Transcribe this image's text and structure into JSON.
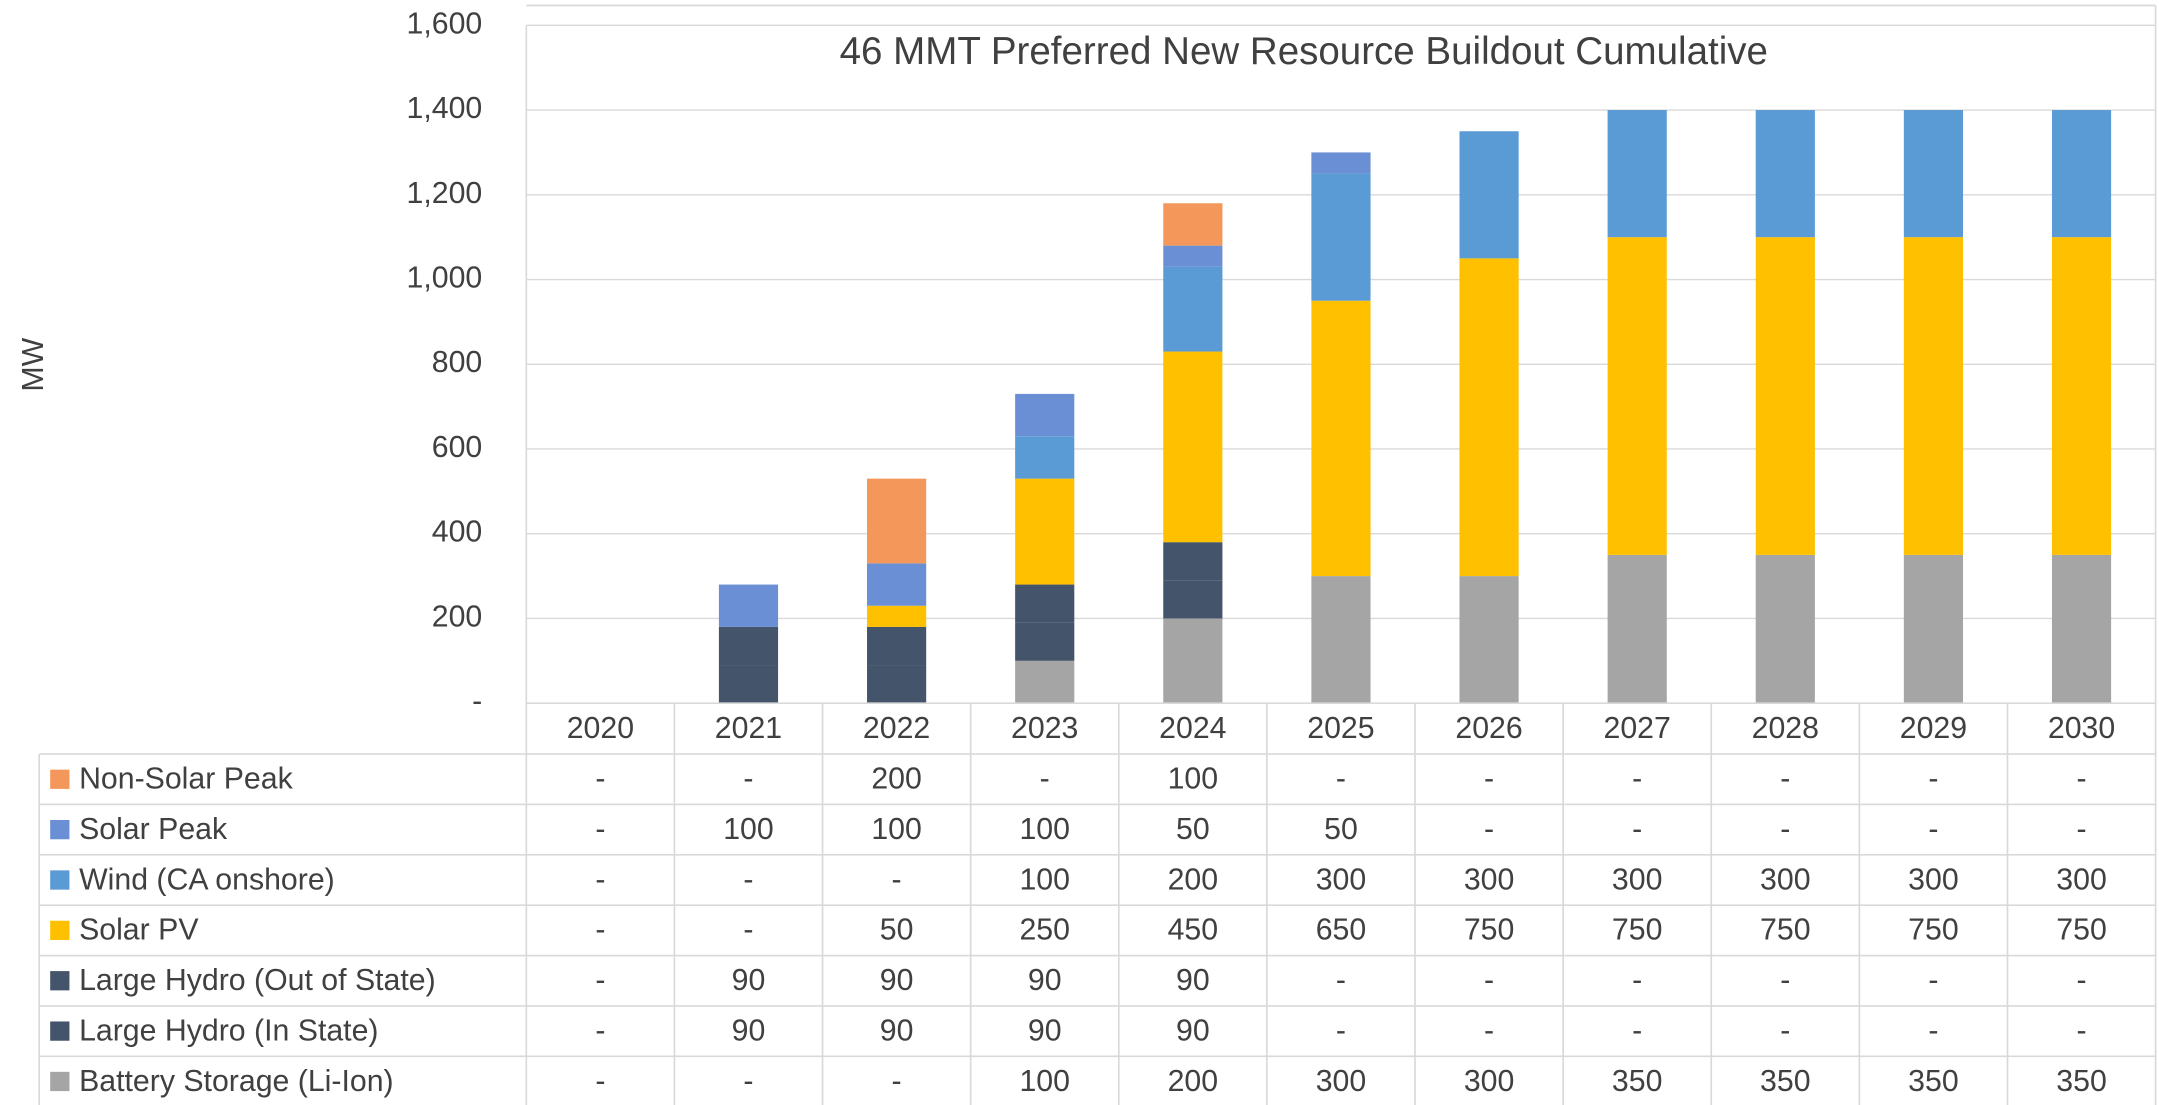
{
  "chart_data": {
    "type": "bar",
    "stacked": true,
    "title": "46 MMT Preferred New Resource Buildout Cumulative",
    "y_label": "MW",
    "categories": [
      "2020",
      "2021",
      "2022",
      "2023",
      "2024",
      "2025",
      "2026",
      "2027",
      "2028",
      "2029",
      "2030"
    ],
    "ylim": [
      0,
      1600
    ],
    "yticks": [
      {
        "value": 0,
        "label": "-"
      },
      200,
      400,
      600,
      800,
      {
        "value": 1000,
        "label": "1,000"
      },
      {
        "value": 1200,
        "label": "1,200"
      },
      {
        "value": 1400,
        "label": "1,400"
      },
      {
        "value": 1600,
        "label": "1,600"
      }
    ],
    "grid": true,
    "series": [
      {
        "name": "Non-Solar Peak",
        "color": "#f4975a",
        "values": [
          0,
          0,
          200,
          0,
          100,
          0,
          0,
          0,
          0,
          0,
          0
        ],
        "value_labels": [
          "-",
          "-",
          "200",
          "-",
          "100",
          "-",
          "-",
          "-",
          "-",
          "-",
          "-"
        ]
      },
      {
        "name": "Solar Peak",
        "color": "#6a8fd4",
        "values": [
          0,
          100,
          100,
          100,
          50,
          50,
          0,
          0,
          0,
          0,
          0
        ],
        "value_labels": [
          "-",
          "100",
          "100",
          "100",
          "50",
          "50",
          "-",
          "-",
          "-",
          "-",
          "-"
        ]
      },
      {
        "name": "Wind (CA onshore)",
        "color": "#5b9bd5",
        "values": [
          0,
          0,
          0,
          100,
          200,
          300,
          300,
          300,
          300,
          300,
          300
        ],
        "value_labels": [
          "-",
          "-",
          "-",
          "100",
          "200",
          "300",
          "300",
          "300",
          "300",
          "300",
          "300"
        ]
      },
      {
        "name": "Solar PV",
        "color": "#ffc000",
        "values": [
          0,
          0,
          50,
          250,
          450,
          650,
          750,
          750,
          750,
          750,
          750
        ],
        "value_labels": [
          "-",
          "-",
          "50",
          "250",
          "450",
          "650",
          "750",
          "750",
          "750",
          "750",
          "750"
        ]
      },
      {
        "name": "Large Hydro (Out of State)",
        "color": "#44546a",
        "values": [
          0,
          90,
          90,
          90,
          90,
          0,
          0,
          0,
          0,
          0,
          0
        ],
        "value_labels": [
          "-",
          "90",
          "90",
          "90",
          "90",
          "-",
          "-",
          "-",
          "-",
          "-",
          "-"
        ]
      },
      {
        "name": "Large Hydro (In State)",
        "color": "#44546a",
        "values": [
          0,
          90,
          90,
          90,
          90,
          0,
          0,
          0,
          0,
          0,
          0
        ],
        "value_labels": [
          "-",
          "90",
          "90",
          "90",
          "90",
          "-",
          "-",
          "-",
          "-",
          "-",
          "-"
        ]
      },
      {
        "name": "Battery Storage (Li-Ion)",
        "color": "#a5a5a5",
        "values": [
          0,
          0,
          0,
          100,
          200,
          300,
          300,
          350,
          350,
          350,
          350
        ],
        "value_labels": [
          "-",
          "-",
          "-",
          "100",
          "200",
          "300",
          "300",
          "350",
          "350",
          "350",
          "350"
        ]
      }
    ]
  }
}
